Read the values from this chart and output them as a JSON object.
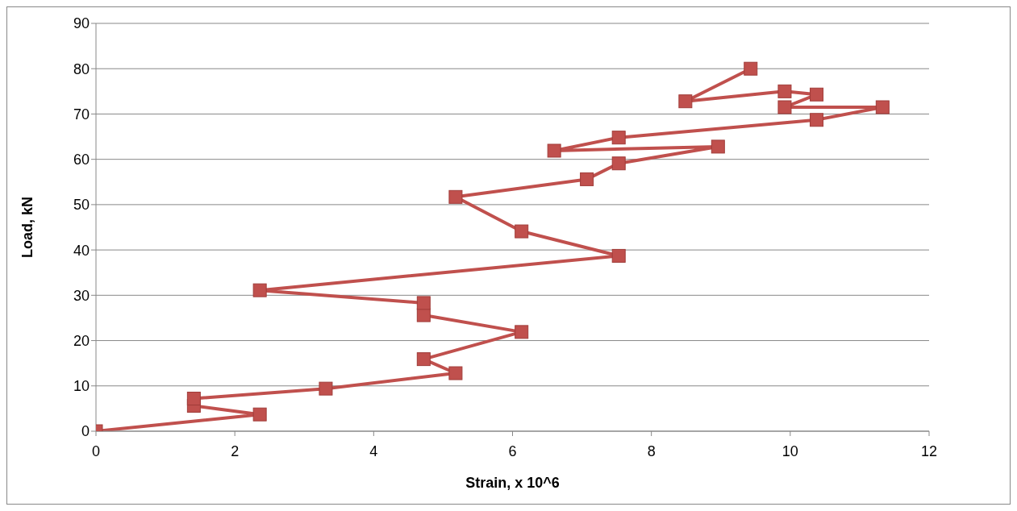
{
  "chart_data": {
    "type": "line",
    "xlabel": "Strain, x 10^6",
    "ylabel": "Load, kN",
    "x": [
      0,
      2.36,
      1.41,
      1.41,
      3.31,
      5.18,
      4.72,
      6.13,
      4.72,
      4.72,
      2.36,
      7.53,
      6.13,
      5.18,
      7.07,
      7.53,
      8.96,
      6.6,
      7.53,
      10.38,
      11.33,
      9.92,
      10.38,
      9.92,
      8.49,
      9.43
    ],
    "series": [
      {
        "color": "#c0504d",
        "values": [
          0,
          3.7,
          5.6,
          7.2,
          9.4,
          12.8,
          15.9,
          21.9,
          25.6,
          28.3,
          31.1,
          38.7,
          44.1,
          51.7,
          55.6,
          59.1,
          62.8,
          61.9,
          64.8,
          68.7,
          71.5,
          71.5,
          74.3,
          75,
          72.8,
          80
        ]
      }
    ],
    "xlim": [
      0,
      12
    ],
    "xticks": [
      0,
      2,
      4,
      6,
      8,
      10,
      12
    ],
    "ylim": [
      0,
      90
    ],
    "yticks": [
      0,
      10,
      20,
      30,
      40,
      50,
      60,
      70,
      80,
      90
    ],
    "grid": "y",
    "legend": false,
    "marker": "square",
    "line_style": "solid"
  }
}
